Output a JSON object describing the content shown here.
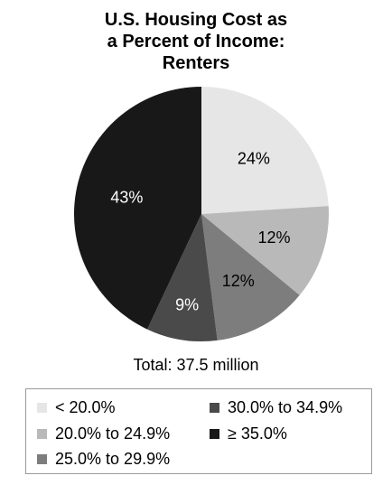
{
  "title": [
    "U.S. Housing Cost as",
    "a Percent of Income:",
    "Renters"
  ],
  "total_label": "Total: 37.5 million",
  "chart_data": {
    "type": "pie",
    "title": "U.S. Housing Cost as a Percent of Income: Renters",
    "total": "Total: 37.5 million",
    "legend_position": "bottom",
    "slices": [
      {
        "label": "< 20.0%",
        "value": 24,
        "display": "24%",
        "color": "#e6e6e6",
        "text_color": "#000000"
      },
      {
        "label": "20.0% to 24.9%",
        "value": 12,
        "display": "12%",
        "color": "#b9b9b9",
        "text_color": "#000000"
      },
      {
        "label": "25.0% to 29.9%",
        "value": 12,
        "display": "12%",
        "color": "#7d7d7d",
        "text_color": "#000000"
      },
      {
        "label": "30.0% to 34.9%",
        "value": 9,
        "display": "9%",
        "color": "#4a4a4a",
        "text_color": "#ffffff"
      },
      {
        "label": "≥ 35.0%",
        "value": 43,
        "display": "43%",
        "color": "#181818",
        "text_color": "#ffffff"
      }
    ]
  }
}
